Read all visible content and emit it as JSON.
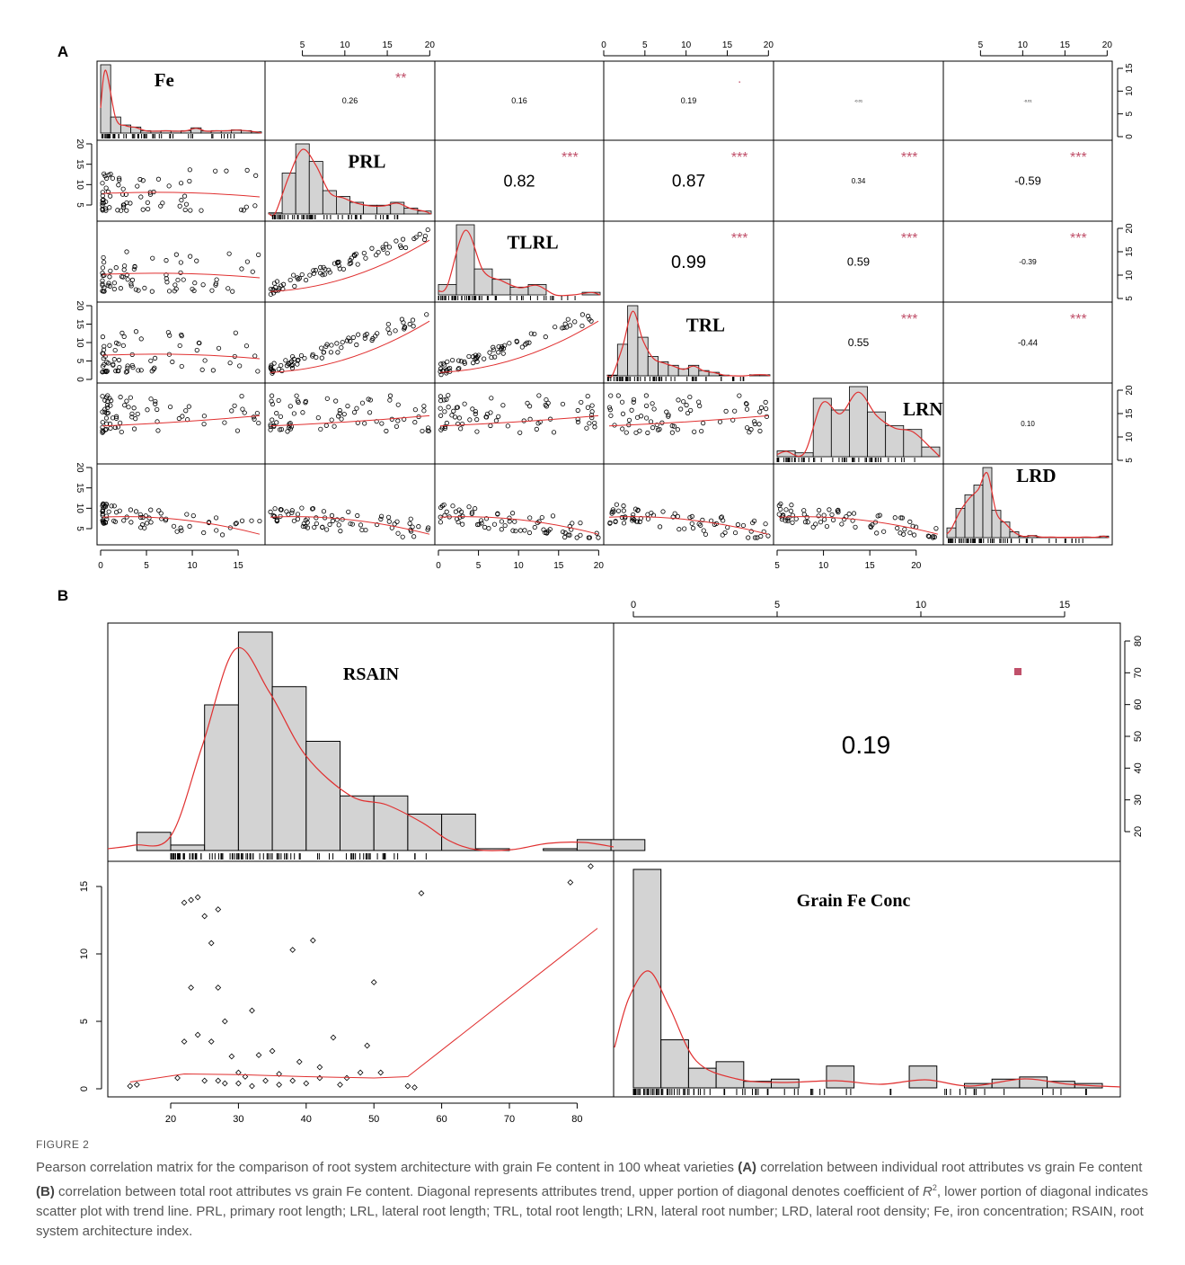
{
  "colors": {
    "hist_fill": "#d3d3d3",
    "trend_line": "#e03030",
    "star_color": "#c0506a",
    "frame": "#000000"
  },
  "figure": {
    "panel_a_label": "A",
    "panel_b_label": "B",
    "caption_label": "FIGURE 2",
    "caption_parts": [
      "Pearson correlation matrix for the comparison of root system architecture with grain Fe content in 100 wheat varieties ",
      "(A)",
      " correlation between individual root attributes vs grain Fe content ",
      "(B)",
      " correlation between total root attributes vs grain Fe content. Diagonal represents attributes trend, upper portion of diagonal denotes coefficient of ",
      "R",
      "2",
      ", lower portion of diagonal indicates scatter plot with trend line. PRL, primary root length; LRL, lateral root length; TRL, total root length; LRN, lateral root number; LRD, lateral root density; Fe, iron concentration; RSAIN, root system architecture index."
    ]
  },
  "chart_data": [
    {
      "type": "scatter",
      "title": "",
      "variables": [
        "Fe",
        "PRL",
        "TLRL",
        "TRL",
        "LRN",
        "LRD"
      ],
      "correlations": [
        {
          "row": "Fe",
          "col": "PRL",
          "r": "0.26",
          "stars": "**"
        },
        {
          "row": "Fe",
          "col": "TLRL",
          "r": "0.16",
          "stars": ""
        },
        {
          "row": "Fe",
          "col": "TRL",
          "r": "0.19",
          "stars": "."
        },
        {
          "row": "Fe",
          "col": "LRN",
          "r": "-0.01",
          "stars": ""
        },
        {
          "row": "Fe",
          "col": "LRD",
          "r": "-0.01",
          "stars": ""
        },
        {
          "row": "PRL",
          "col": "TLRL",
          "r": "0.82",
          "stars": "***"
        },
        {
          "row": "PRL",
          "col": "TRL",
          "r": "0.87",
          "stars": "***"
        },
        {
          "row": "PRL",
          "col": "LRN",
          "r": "0.34",
          "stars": "***"
        },
        {
          "row": "PRL",
          "col": "LRD",
          "r": "-0.59",
          "stars": "***"
        },
        {
          "row": "TLRL",
          "col": "TRL",
          "r": "0.99",
          "stars": "***"
        },
        {
          "row": "TLRL",
          "col": "LRN",
          "r": "0.59",
          "stars": "***"
        },
        {
          "row": "TLRL",
          "col": "LRD",
          "r": "-0.39",
          "stars": "***"
        },
        {
          "row": "TRL",
          "col": "LRN",
          "r": "0.55",
          "stars": "***"
        },
        {
          "row": "TRL",
          "col": "LRD",
          "r": "-0.44",
          "stars": "***"
        },
        {
          "row": "LRN",
          "col": "LRD",
          "r": "0.10",
          "stars": ""
        }
      ],
      "top_axis_ticks": [
        [
          "5",
          "10",
          "15",
          "20"
        ],
        [
          "0",
          "5",
          "10",
          "15",
          "20"
        ],
        [
          "5",
          "10",
          "15",
          "20"
        ]
      ],
      "right_axis_ticks": [
        [
          "0",
          "5",
          "10",
          "15"
        ],
        [
          "5",
          "10",
          "15",
          "20"
        ],
        [
          "5",
          "10",
          "15",
          "20"
        ]
      ],
      "left_axis_ticks": [
        [
          "5",
          "10",
          "15",
          "20"
        ],
        [
          "0",
          "5",
          "10",
          "15",
          "20"
        ],
        [
          "5",
          "10",
          "15",
          "20"
        ]
      ],
      "bottom_axis_ticks": [
        [
          "0",
          "5",
          "10",
          "15"
        ],
        [
          "0",
          "5",
          "10",
          "15",
          "20"
        ],
        [
          "5",
          "10",
          "15",
          "20"
        ]
      ],
      "series": [
        {
          "name": "Fe",
          "hist": [
            17,
            4,
            2,
            1.5,
            0.6,
            0.5,
            0.6,
            0.5,
            0.6,
            1.3,
            0.5,
            0.6,
            0.6,
            0.8,
            0.6,
            0.3
          ],
          "range": [
            0,
            16.5
          ]
        },
        {
          "name": "PRL",
          "hist": [
            0.2,
            7,
            12,
            9,
            4,
            3,
            2,
            1.5,
            1.5,
            2,
            1,
            0.5
          ],
          "range": [
            0,
            20
          ]
        },
        {
          "name": "TLRL",
          "hist": [
            4,
            27,
            10,
            6,
            3,
            4,
            0,
            0,
            1
          ],
          "range": [
            0,
            20
          ]
        },
        {
          "name": "TRL",
          "hist": [
            0.2,
            9,
            20,
            11,
            5.5,
            4,
            3,
            2,
            3,
            1.5,
            1,
            0.2,
            0,
            0,
            0.3,
            0.3
          ],
          "range": [
            0,
            20
          ]
        },
        {
          "name": "LRN",
          "hist": [
            0.3,
            0.2,
            3,
            2.4,
            3.6,
            2.3,
            1.6,
            1.4,
            0.5
          ],
          "range": [
            5,
            22
          ]
        },
        {
          "name": "LRD",
          "hist": [
            5,
            15,
            22,
            27,
            36,
            14,
            8,
            3,
            0.7,
            1.1,
            0.3,
            0.3,
            0.2,
            0.2,
            0.2,
            0.3,
            0.2,
            0.8
          ],
          "range": [
            0,
            10
          ]
        }
      ]
    },
    {
      "type": "scatter",
      "title": "",
      "variables": [
        "RSAIN",
        "Grain Fe Conc"
      ],
      "correlations": [
        {
          "row": "RSAIN",
          "col": "Grain Fe Conc",
          "r": "0.19",
          "stars": "."
        }
      ],
      "top_axis_ticks": [
        "0",
        "5",
        "10",
        "15"
      ],
      "right_axis_ticks": [
        "20",
        "30",
        "40",
        "50",
        "60",
        "70",
        "80"
      ],
      "left_axis_ticks": [
        "0",
        "5",
        "10",
        "15"
      ],
      "bottom_axis_ticks": [
        "20",
        "30",
        "40",
        "50",
        "60",
        "70",
        "80"
      ],
      "series": [
        {
          "name": "RSAIN",
          "hist_bins": [
            [
              13,
              18,
              1
            ],
            [
              18,
              23,
              0.3
            ],
            [
              23,
              28,
              8
            ],
            [
              28,
              33,
              12
            ],
            [
              33,
              38,
              9
            ],
            [
              38,
              43,
              6
            ],
            [
              43,
              48,
              3
            ],
            [
              48,
              53,
              3
            ],
            [
              53,
              58,
              2
            ],
            [
              58,
              63,
              2
            ],
            [
              63,
              68,
              0.1
            ],
            [
              68,
              73,
              0
            ],
            [
              73,
              78,
              0.1
            ],
            [
              78,
              83,
              0.6
            ],
            [
              83,
              88,
              0.6
            ]
          ]
        },
        {
          "name": "Grain Fe Conc",
          "hist_bins": [
            [
              0,
              1,
              1.0
            ],
            [
              1,
              2,
              0.22
            ],
            [
              2,
              3,
              0.09
            ],
            [
              3,
              4,
              0.12
            ],
            [
              4,
              5,
              0.03
            ],
            [
              5,
              6,
              0.04
            ],
            [
              6,
              7,
              0.0
            ],
            [
              7,
              8,
              0.1
            ],
            [
              8,
              9,
              0.0
            ],
            [
              9,
              10,
              0.0
            ],
            [
              10,
              11,
              0.1
            ],
            [
              11,
              12,
              0.0
            ],
            [
              12,
              13,
              0.02
            ],
            [
              13,
              14,
              0.04
            ],
            [
              14,
              15,
              0.05
            ],
            [
              15,
              16,
              0.03
            ],
            [
              16,
              17,
              0.02
            ]
          ]
        },
        {
          "name": "RSAIN vs Grain Fe Conc",
          "x": [
            14,
            15,
            21,
            22,
            22,
            23,
            23,
            24,
            24,
            25,
            25,
            26,
            26,
            27,
            27,
            27,
            28,
            28,
            29,
            30,
            30,
            31,
            32,
            32,
            33,
            34,
            35,
            36,
            36,
            38,
            38,
            39,
            40,
            41,
            42,
            42,
            44,
            45,
            46,
            48,
            49,
            50,
            51,
            55,
            56,
            57,
            79,
            82
          ],
          "y": [
            0.2,
            0.3,
            0.8,
            3.5,
            13.8,
            14.0,
            7.5,
            14.2,
            4.0,
            12.8,
            0.6,
            10.8,
            3.5,
            7.5,
            13.3,
            0.6,
            5.0,
            0.4,
            2.4,
            0.4,
            1.2,
            0.9,
            5.8,
            0.2,
            2.5,
            0.6,
            2.8,
            1.1,
            0.3,
            10.3,
            0.6,
            2.0,
            0.4,
            11.0,
            0.8,
            1.6,
            3.8,
            0.3,
            0.8,
            1.2,
            3.2,
            7.9,
            1.2,
            0.2,
            0.1,
            14.5,
            15.3,
            16.5
          ]
        }
      ]
    }
  ]
}
